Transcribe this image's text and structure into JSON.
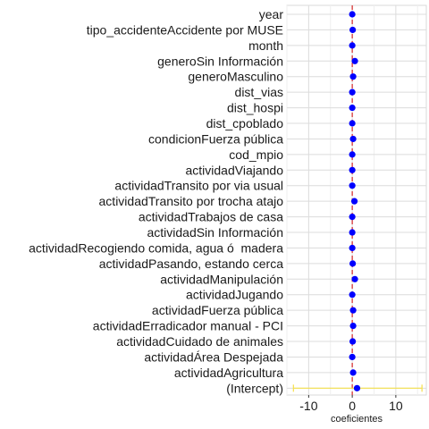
{
  "chart_data": {
    "type": "scatter",
    "xlabel": "coeficientes",
    "ylabel": "",
    "title": "",
    "xlim": [
      -15,
      17
    ],
    "xticks": [
      -10,
      0,
      10
    ],
    "grid": true,
    "reference_line": {
      "x": 0,
      "color": "#d62728",
      "style": "dashed"
    },
    "point_color": "#0000ff",
    "errorbar_color": "#f5e04a",
    "categories": [
      "year",
      "tipo_accidenteAccidente por MUSE",
      "month",
      "generoSin Información",
      "generoMasculino",
      "dist_vias",
      "dist_hospi",
      "dist_cpoblado",
      "condicionFuerza pública",
      "cod_mpio",
      "actividadViajando",
      "actividadTransito por via usual",
      "actividadTransito por trocha atajo",
      "actividadTrabajos de casa",
      "actividadSin Información",
      "actividadRecogiendo comida, agua ó  madera",
      "actividadPasando, estando cerca",
      "actividadManipulación",
      "actividadJugando",
      "actividadFuerza pública",
      "actividadErradicador manual - PCI",
      "actividadCuidado de animales",
      "actividadÁrea Despejada",
      "actividadAgricultura",
      "(Intercept)"
    ],
    "values": [
      0.0,
      0.1,
      0.0,
      0.6,
      0.2,
      0.0,
      0.0,
      0.0,
      0.2,
      0.0,
      0.0,
      0.0,
      0.5,
      0.0,
      0.0,
      0.0,
      0.1,
      0.6,
      0.0,
      0.2,
      0.2,
      0.1,
      0.0,
      0.2,
      1.1
    ],
    "ci_low": [
      0.0,
      0.0,
      0.0,
      0.4,
      0.1,
      0.0,
      0.0,
      0.0,
      0.1,
      0.0,
      -0.1,
      -0.1,
      0.3,
      -0.1,
      -0.1,
      -0.1,
      0.0,
      0.4,
      -0.1,
      0.1,
      0.1,
      0.0,
      -0.1,
      0.1,
      -13.5
    ],
    "ci_high": [
      0.1,
      0.2,
      0.1,
      0.8,
      0.3,
      0.1,
      0.1,
      0.1,
      0.3,
      0.1,
      0.1,
      0.1,
      0.7,
      0.1,
      0.1,
      0.1,
      0.2,
      0.8,
      0.1,
      0.3,
      0.3,
      0.2,
      0.1,
      0.3,
      16.0
    ]
  }
}
